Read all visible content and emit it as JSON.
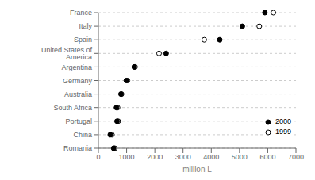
{
  "chart_data": {
    "type": "dot",
    "xlabel": "million L",
    "categories": [
      "France",
      "Italy",
      "Spain",
      "United States of America",
      "Argentina",
      "Germany",
      "Australia",
      "South Africa",
      "Portugal",
      "China",
      "Romania"
    ],
    "series": [
      {
        "name": "2000",
        "color": "#000000",
        "values": [
          5900,
          5100,
          4300,
          2400,
          1270,
          990,
          800,
          640,
          660,
          420,
          540
        ]
      },
      {
        "name": "1999",
        "color": "#ffffff",
        "values": [
          6200,
          5700,
          3750,
          2150,
          1300,
          1030,
          820,
          680,
          700,
          480,
          580
        ]
      }
    ],
    "xlim": [
      0,
      7000
    ],
    "xticks": [
      0,
      1000,
      2000,
      3000,
      4000,
      5000,
      6000,
      7000
    ],
    "grid": true,
    "legend": "lower right"
  }
}
